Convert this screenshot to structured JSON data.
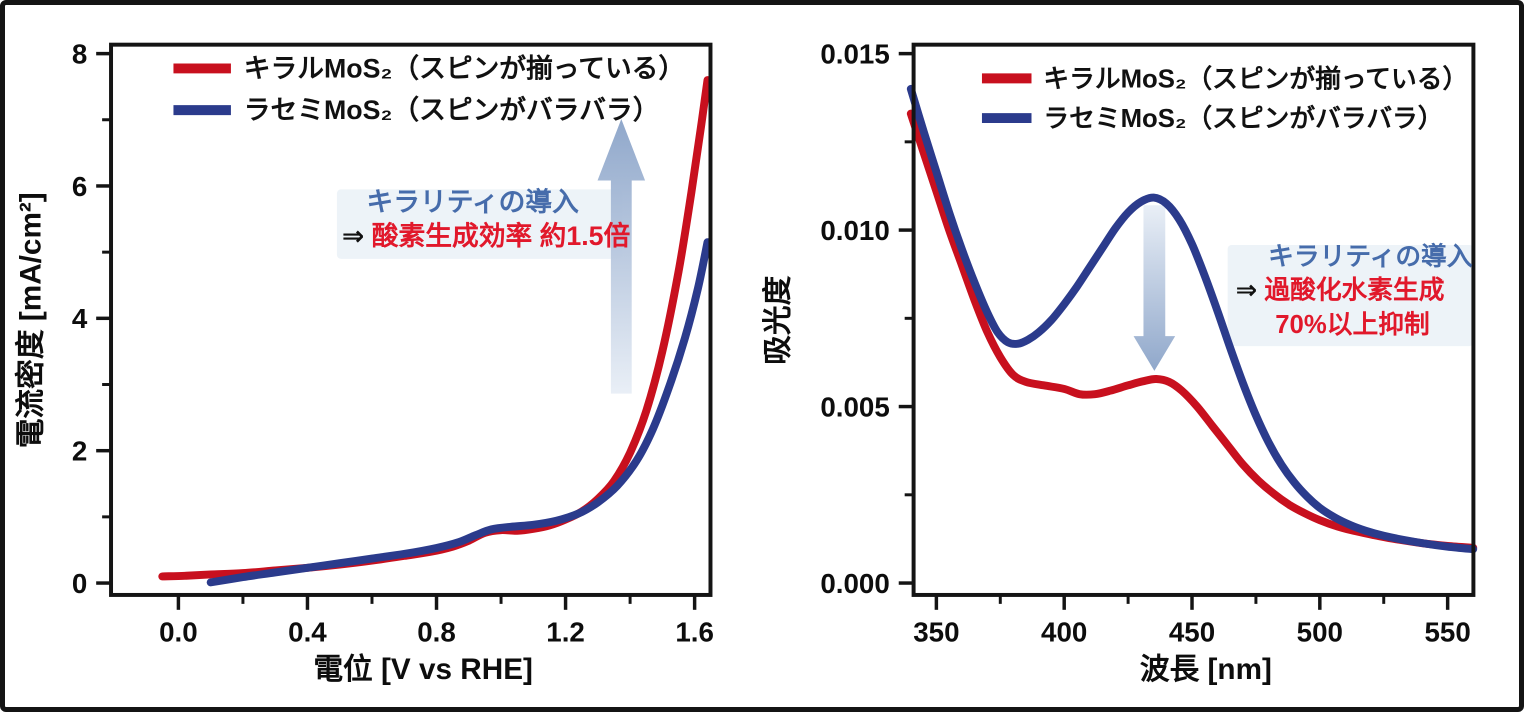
{
  "figure": {
    "background": "#ffffff",
    "border_color": "#141414",
    "axis_color": "#141414",
    "tick_label_color": "#0d0d0d",
    "annotation_heading_color": "#466cab",
    "annotation_red_color": "#e1182b",
    "annotation_prefix_color": "#111111",
    "annotation_highlight_color": "#d8e4f0",
    "arrow_gradient_light": "#e8eef6",
    "arrow_gradient_dark": "#8aa3c8"
  },
  "chart_data": [
    {
      "id": "left",
      "type": "line",
      "title": "",
      "xlabel": "電位 [V vs RHE]",
      "ylabel": "電流密度 [mA/cm²]",
      "xlim": [
        -0.21,
        1.65
      ],
      "ylim": [
        0,
        8
      ],
      "xticks": [
        0.0,
        0.4,
        0.8,
        1.2,
        1.6
      ],
      "xtick_labels": [
        "0.0",
        "0.4",
        "0.8",
        "1.2",
        "1.6"
      ],
      "xticks_minor": [
        0.2,
        0.6,
        1.0,
        1.4
      ],
      "yticks": [
        0,
        2,
        4,
        6,
        8
      ],
      "ytick_labels": [
        "0",
        "2",
        "4",
        "6",
        "8"
      ],
      "yticks_minor": [
        1,
        3,
        5,
        7
      ],
      "grid": false,
      "legend_position": "top-left",
      "series": [
        {
          "name": "キラルMoS₂（スピンが揃っている）",
          "color": "#c8101e",
          "points": [
            [
              -0.05,
              0.1
            ],
            [
              0.02,
              0.11
            ],
            [
              0.1,
              0.13
            ],
            [
              0.2,
              0.15
            ],
            [
              0.3,
              0.19
            ],
            [
              0.4,
              0.23
            ],
            [
              0.5,
              0.28
            ],
            [
              0.6,
              0.34
            ],
            [
              0.7,
              0.41
            ],
            [
              0.78,
              0.47
            ],
            [
              0.85,
              0.55
            ],
            [
              0.9,
              0.64
            ],
            [
              0.95,
              0.76
            ],
            [
              1.0,
              0.8
            ],
            [
              1.05,
              0.79
            ],
            [
              1.1,
              0.82
            ],
            [
              1.15,
              0.87
            ],
            [
              1.2,
              0.96
            ],
            [
              1.25,
              1.08
            ],
            [
              1.3,
              1.27
            ],
            [
              1.35,
              1.54
            ],
            [
              1.4,
              1.97
            ],
            [
              1.45,
              2.6
            ],
            [
              1.5,
              3.5
            ],
            [
              1.55,
              4.7
            ],
            [
              1.59,
              5.9
            ],
            [
              1.62,
              6.9
            ],
            [
              1.64,
              7.6
            ]
          ]
        },
        {
          "name": "ラセミMoS₂（スピンがバラバラ）",
          "color": "#2b3b8c",
          "points": [
            [
              0.1,
              0.01
            ],
            [
              0.2,
              0.09
            ],
            [
              0.3,
              0.16
            ],
            [
              0.4,
              0.23
            ],
            [
              0.5,
              0.3
            ],
            [
              0.6,
              0.37
            ],
            [
              0.7,
              0.44
            ],
            [
              0.8,
              0.53
            ],
            [
              0.87,
              0.62
            ],
            [
              0.92,
              0.72
            ],
            [
              0.97,
              0.81
            ],
            [
              1.03,
              0.85
            ],
            [
              1.1,
              0.88
            ],
            [
              1.17,
              0.94
            ],
            [
              1.24,
              1.05
            ],
            [
              1.3,
              1.22
            ],
            [
              1.36,
              1.47
            ],
            [
              1.42,
              1.85
            ],
            [
              1.47,
              2.32
            ],
            [
              1.52,
              2.95
            ],
            [
              1.57,
              3.7
            ],
            [
              1.61,
              4.45
            ],
            [
              1.64,
              5.15
            ]
          ]
        }
      ],
      "annotation": {
        "heading": "キラリティの導入",
        "prefix": "⇒",
        "lines": [
          "酸素生成効率 約1.5倍"
        ],
        "big_arrow": "up"
      }
    },
    {
      "id": "right",
      "type": "line",
      "title": "",
      "xlabel": "波長 [nm]",
      "ylabel": "吸光度",
      "xlim": [
        340,
        560
      ],
      "ylim": [
        0,
        0.015
      ],
      "xticks": [
        350,
        400,
        450,
        500,
        550
      ],
      "xtick_labels": [
        "350",
        "400",
        "450",
        "500",
        "550"
      ],
      "xticks_minor": [
        375,
        425,
        475,
        525
      ],
      "yticks": [
        0,
        0.005,
        0.01,
        0.015
      ],
      "ytick_labels": [
        "0.000",
        "0.005",
        "0.010",
        "0.015"
      ],
      "yticks_minor": [
        0.0025,
        0.0075,
        0.0125
      ],
      "grid": false,
      "legend_position": "top-left",
      "series": [
        {
          "name": "キラルMoS₂（スピンが揃っている）",
          "color": "#c8101e",
          "points": [
            [
              340,
              0.0133
            ],
            [
              345,
              0.0122
            ],
            [
              350,
              0.0111
            ],
            [
              355,
              0.01
            ],
            [
              360,
              0.009
            ],
            [
              365,
              0.008
            ],
            [
              370,
              0.0071
            ],
            [
              375,
              0.0064
            ],
            [
              380,
              0.0059
            ],
            [
              385,
              0.0057
            ],
            [
              392,
              0.0056
            ],
            [
              400,
              0.0055
            ],
            [
              406,
              0.00535
            ],
            [
              412,
              0.00535
            ],
            [
              418,
              0.00545
            ],
            [
              425,
              0.0056
            ],
            [
              431,
              0.00572
            ],
            [
              436,
              0.00578
            ],
            [
              441,
              0.0057
            ],
            [
              446,
              0.00545
            ],
            [
              452,
              0.005
            ],
            [
              458,
              0.00445
            ],
            [
              464,
              0.0039
            ],
            [
              470,
              0.00335
            ],
            [
              476,
              0.0029
            ],
            [
              482,
              0.00253
            ],
            [
              488,
              0.00222
            ],
            [
              494,
              0.00198
            ],
            [
              500,
              0.00178
            ],
            [
              507,
              0.0016
            ],
            [
              514,
              0.00147
            ],
            [
              521,
              0.00136
            ],
            [
              530,
              0.00124
            ],
            [
              540,
              0.00113
            ],
            [
              550,
              0.00105
            ],
            [
              560,
              0.001
            ]
          ]
        },
        {
          "name": "ラセミMoS₂（スピンがバラバラ）",
          "color": "#2b3b8c",
          "points": [
            [
              340,
              0.014
            ],
            [
              345,
              0.0128
            ],
            [
              350,
              0.01165
            ],
            [
              355,
              0.0105
            ],
            [
              360,
              0.00945
            ],
            [
              365,
              0.0085
            ],
            [
              370,
              0.00765
            ],
            [
              374,
              0.0071
            ],
            [
              378,
              0.00682
            ],
            [
              382,
              0.00678
            ],
            [
              386,
              0.0069
            ],
            [
              390,
              0.0071
            ],
            [
              395,
              0.00745
            ],
            [
              400,
              0.0079
            ],
            [
              405,
              0.0084
            ],
            [
              410,
              0.00895
            ],
            [
              415,
              0.0095
            ],
            [
              420,
              0.01005
            ],
            [
              425,
              0.0105
            ],
            [
              430,
              0.0108
            ],
            [
              435,
              0.01092
            ],
            [
              440,
              0.01075
            ],
            [
              445,
              0.0103
            ],
            [
              450,
              0.0096
            ],
            [
              455,
              0.0087
            ],
            [
              460,
              0.0077
            ],
            [
              465,
              0.00665
            ],
            [
              470,
              0.00565
            ],
            [
              475,
              0.00475
            ],
            [
              480,
              0.00398
            ],
            [
              485,
              0.00335
            ],
            [
              490,
              0.00285
            ],
            [
              495,
              0.00245
            ],
            [
              500,
              0.00213
            ],
            [
              506,
              0.00185
            ],
            [
              512,
              0.00164
            ],
            [
              518,
              0.00148
            ],
            [
              525,
              0.00134
            ],
            [
              533,
              0.00122
            ],
            [
              541,
              0.00112
            ],
            [
              550,
              0.00103
            ],
            [
              560,
              0.00096
            ]
          ]
        }
      ],
      "annotation": {
        "heading": "キラリティの導入",
        "prefix": "⇒",
        "lines": [
          "過酸化水素生成",
          "70%以上抑制"
        ],
        "big_arrow": "down"
      }
    }
  ]
}
